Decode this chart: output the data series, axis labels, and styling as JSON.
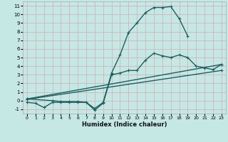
{
  "xlabel": "Humidex (Indice chaleur)",
  "xlim": [
    -0.5,
    23.5
  ],
  "ylim": [
    -1.5,
    11.5
  ],
  "xticks": [
    0,
    1,
    2,
    3,
    4,
    5,
    6,
    7,
    8,
    9,
    10,
    11,
    12,
    13,
    14,
    15,
    16,
    17,
    18,
    19,
    20,
    21,
    22,
    23
  ],
  "yticks": [
    -1,
    0,
    1,
    2,
    3,
    4,
    5,
    6,
    7,
    8,
    9,
    10,
    11
  ],
  "background_color": "#c5e8e5",
  "grid_color": "#d4b4b4",
  "line_color": "#1a6060",
  "line_width": 1.0,
  "marker": "+",
  "marker_size": 3.5,
  "marker_edge_width": 0.8,
  "series": [
    {
      "x": [
        0,
        1,
        2,
        3,
        4,
        5,
        6,
        7,
        8,
        9,
        10,
        11,
        12,
        13,
        14,
        15,
        16,
        17,
        18,
        19
      ],
      "y": [
        -0.2,
        -0.3,
        -0.8,
        -0.2,
        -0.2,
        -0.2,
        -0.2,
        -0.2,
        -0.9,
        -0.2,
        3.2,
        5.3,
        7.9,
        9.0,
        10.2,
        10.8,
        10.8,
        10.9,
        9.5,
        7.5
      ]
    },
    {
      "x": [
        0,
        3,
        4,
        5,
        6,
        7,
        8,
        9,
        10,
        11,
        12,
        13,
        14,
        15,
        16,
        17,
        18,
        19,
        20,
        21,
        22,
        23
      ],
      "y": [
        0.2,
        0.0,
        -0.1,
        -0.1,
        -0.1,
        -0.2,
        -1.1,
        -0.3,
        3.0,
        3.2,
        3.5,
        3.5,
        4.7,
        5.5,
        5.2,
        5.0,
        5.3,
        5.0,
        4.0,
        3.8,
        3.6,
        4.2
      ]
    },
    {
      "x": [
        0,
        23
      ],
      "y": [
        0.15,
        3.5
      ]
    },
    {
      "x": [
        0,
        23
      ],
      "y": [
        0.2,
        4.2
      ]
    }
  ]
}
